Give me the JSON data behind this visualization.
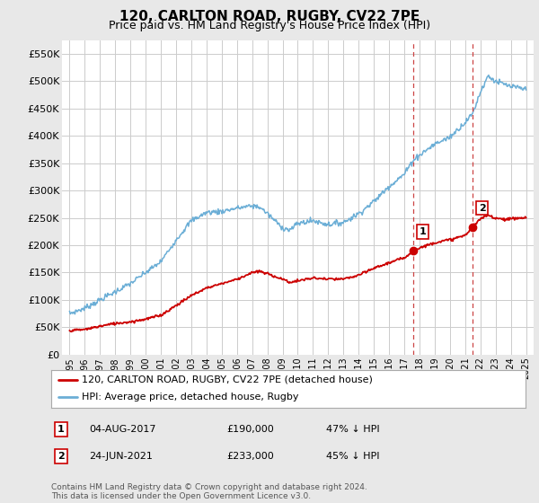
{
  "title": "120, CARLTON ROAD, RUGBY, CV22 7PE",
  "subtitle": "Price paid vs. HM Land Registry's House Price Index (HPI)",
  "title_fontsize": 11,
  "subtitle_fontsize": 9,
  "ylabel_ticks": [
    "£0",
    "£50K",
    "£100K",
    "£150K",
    "£200K",
    "£250K",
    "£300K",
    "£350K",
    "£400K",
    "£450K",
    "£500K",
    "£550K"
  ],
  "ytick_values": [
    0,
    50000,
    100000,
    150000,
    200000,
    250000,
    300000,
    350000,
    400000,
    450000,
    500000,
    550000
  ],
  "ylim": [
    0,
    575000
  ],
  "bg_color": "#e8e8e8",
  "plot_bg_color": "#ffffff",
  "hpi_line_color": "#6baed6",
  "price_line_color": "#cc0000",
  "grid_color": "#cccccc",
  "sale1_x": 2017.585,
  "sale1_price": 190000,
  "sale2_x": 2021.479,
  "sale2_price": 233000,
  "vline_color": "#cc4444",
  "legend_label_red": "120, CARLTON ROAD, RUGBY, CV22 7PE (detached house)",
  "legend_label_blue": "HPI: Average price, detached house, Rugby",
  "table_row1": [
    "1",
    "04-AUG-2017",
    "£190,000",
    "47% ↓ HPI"
  ],
  "table_row2": [
    "2",
    "24-JUN-2021",
    "£233,000",
    "45% ↓ HPI"
  ],
  "footnote": "Contains HM Land Registry data © Crown copyright and database right 2024.\nThis data is licensed under the Open Government Licence v3.0."
}
